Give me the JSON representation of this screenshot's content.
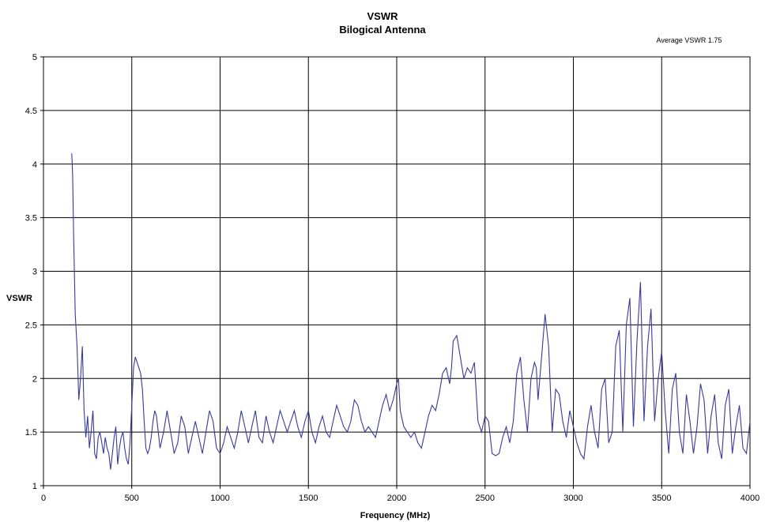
{
  "chart_data": {
    "type": "line",
    "title": "VSWR",
    "subtitle": "Bilogical Antenna",
    "annotation": "Average VSWR 1.75",
    "xlabel": "Frequency (MHz)",
    "ylabel": "VSWR",
    "xlim": [
      0,
      4000
    ],
    "ylim": [
      1,
      5
    ],
    "x_ticks": [
      0,
      500,
      1000,
      1500,
      2000,
      2500,
      3000,
      3500,
      4000
    ],
    "y_ticks": [
      1,
      1.5,
      2,
      2.5,
      3,
      3.5,
      4,
      4.5,
      5
    ],
    "x_tick_labels": [
      "0",
      "500",
      "1000",
      "1500",
      "2000",
      "2500",
      "3000",
      "3500",
      "4000"
    ],
    "y_tick_labels": [
      "1",
      "1.5",
      "2",
      "2.5",
      "3",
      "3.5",
      "4",
      "4.5",
      "5"
    ],
    "grid": true,
    "series_color": "#3a3a9c",
    "series": [
      {
        "x": [
          160,
          165,
          170,
          180,
          190,
          200,
          210,
          220,
          230,
          240,
          250,
          260,
          270,
          280,
          290,
          300,
          310,
          320,
          330,
          340,
          350,
          360,
          370,
          380,
          390,
          400,
          410,
          420,
          430,
          440,
          450,
          460,
          470,
          480,
          490,
          500,
          510,
          520,
          530,
          540,
          550,
          560,
          570,
          580,
          590,
          600,
          610,
          620,
          630,
          640,
          660,
          680,
          700,
          720,
          740,
          760,
          780,
          800,
          820,
          840,
          860,
          880,
          900,
          920,
          940,
          960,
          980,
          1000,
          1020,
          1040,
          1060,
          1080,
          1100,
          1120,
          1140,
          1160,
          1180,
          1200,
          1220,
          1240,
          1260,
          1280,
          1300,
          1320,
          1340,
          1360,
          1380,
          1400,
          1420,
          1440,
          1460,
          1480,
          1500,
          1520,
          1540,
          1560,
          1580,
          1600,
          1620,
          1640,
          1660,
          1680,
          1700,
          1720,
          1740,
          1760,
          1780,
          1800,
          1820,
          1840,
          1860,
          1880,
          1900,
          1920,
          1940,
          1960,
          1980,
          2000,
          2010,
          2020,
          2040,
          2060,
          2080,
          2100,
          2120,
          2140,
          2160,
          2180,
          2200,
          2220,
          2240,
          2260,
          2280,
          2300,
          2310,
          2320,
          2340,
          2360,
          2380,
          2400,
          2420,
          2440,
          2460,
          2480,
          2500,
          2520,
          2540,
          2560,
          2580,
          2600,
          2620,
          2640,
          2660,
          2680,
          2700,
          2720,
          2740,
          2760,
          2780,
          2790,
          2800,
          2820,
          2840,
          2860,
          2880,
          2900,
          2920,
          2940,
          2960,
          2980,
          3000,
          3020,
          3040,
          3060,
          3080,
          3100,
          3120,
          3140,
          3160,
          3180,
          3200,
          3220,
          3240,
          3260,
          3280,
          3300,
          3320,
          3340,
          3360,
          3380,
          3400,
          3420,
          3440,
          3460,
          3480,
          3500,
          3520,
          3540,
          3560,
          3580,
          3600,
          3620,
          3640,
          3660,
          3680,
          3700,
          3720,
          3740,
          3760,
          3780,
          3800,
          3820,
          3840,
          3860,
          3880,
          3900,
          3920,
          3940,
          3960,
          3980,
          4000
        ],
        "y": [
          4.1,
          3.9,
          3.4,
          2.6,
          2.3,
          1.8,
          2.0,
          2.3,
          1.7,
          1.45,
          1.65,
          1.35,
          1.5,
          1.7,
          1.3,
          1.25,
          1.45,
          1.5,
          1.4,
          1.3,
          1.45,
          1.35,
          1.3,
          1.15,
          1.3,
          1.45,
          1.55,
          1.2,
          1.35,
          1.45,
          1.5,
          1.35,
          1.25,
          1.2,
          1.4,
          1.75,
          2.1,
          2.2,
          2.15,
          2.1,
          2.05,
          1.9,
          1.6,
          1.35,
          1.3,
          1.35,
          1.45,
          1.6,
          1.7,
          1.65,
          1.35,
          1.5,
          1.7,
          1.5,
          1.3,
          1.4,
          1.65,
          1.55,
          1.3,
          1.45,
          1.6,
          1.45,
          1.3,
          1.5,
          1.7,
          1.6,
          1.35,
          1.3,
          1.4,
          1.55,
          1.45,
          1.35,
          1.5,
          1.7,
          1.55,
          1.4,
          1.55,
          1.7,
          1.45,
          1.4,
          1.65,
          1.5,
          1.4,
          1.55,
          1.7,
          1.6,
          1.5,
          1.6,
          1.7,
          1.55,
          1.45,
          1.6,
          1.7,
          1.5,
          1.4,
          1.55,
          1.65,
          1.5,
          1.45,
          1.6,
          1.75,
          1.65,
          1.55,
          1.5,
          1.6,
          1.8,
          1.75,
          1.6,
          1.5,
          1.55,
          1.5,
          1.45,
          1.6,
          1.75,
          1.85,
          1.7,
          1.8,
          1.95,
          2.0,
          1.7,
          1.55,
          1.5,
          1.45,
          1.5,
          1.4,
          1.35,
          1.5,
          1.65,
          1.75,
          1.7,
          1.85,
          2.05,
          2.1,
          1.95,
          2.1,
          2.35,
          2.4,
          2.2,
          2.0,
          2.1,
          2.05,
          2.15,
          1.6,
          1.5,
          1.65,
          1.6,
          1.3,
          1.28,
          1.3,
          1.45,
          1.55,
          1.4,
          1.6,
          2.05,
          2.2,
          1.8,
          1.5,
          2.0,
          2.15,
          2.1,
          1.8,
          2.2,
          2.6,
          2.3,
          1.5,
          1.9,
          1.85,
          1.6,
          1.45,
          1.7,
          1.55,
          1.4,
          1.3,
          1.25,
          1.55,
          1.75,
          1.5,
          1.35,
          1.9,
          2.0,
          1.4,
          1.5,
          2.3,
          2.45,
          1.5,
          2.5,
          2.75,
          1.55,
          2.35,
          2.9,
          1.6,
          2.3,
          2.65,
          1.6,
          2.0,
          2.25,
          1.7,
          1.3,
          1.9,
          2.05,
          1.5,
          1.3,
          1.85,
          1.6,
          1.3,
          1.55,
          1.95,
          1.8,
          1.3,
          1.65,
          1.85,
          1.4,
          1.25,
          1.75,
          1.9,
          1.3,
          1.55,
          1.75,
          1.35,
          1.3,
          1.6
        ]
      }
    ]
  }
}
